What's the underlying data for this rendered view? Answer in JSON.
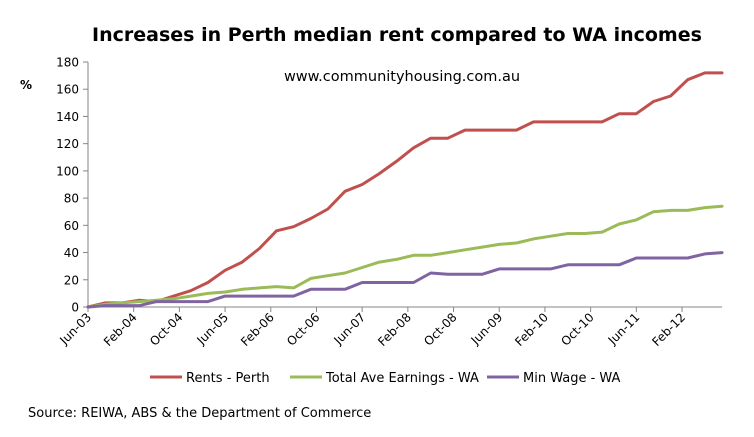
{
  "chart_data": {
    "type": "line",
    "title": "Increases in Perth median rent compared to WA incomes",
    "annotation": "www.communityhousing.com.au",
    "ylabel": "%",
    "source": "Source: REIWA, ABS & the Department of Commerce",
    "ylim": [
      0,
      180
    ],
    "yticks": [
      0,
      20,
      40,
      60,
      80,
      100,
      120,
      140,
      160,
      180
    ],
    "grid": false,
    "legend_position": "bottom",
    "x_tick_labels": [
      "Jun-03",
      "Feb-04",
      "Oct-04",
      "Jun-05",
      "Feb-06",
      "Oct-06",
      "Jun-07",
      "Feb-08",
      "Oct-08",
      "Jun-09",
      "Feb-10",
      "Oct-10",
      "Jun-11",
      "Feb-12"
    ],
    "x_start": "Jun-03",
    "x_end": "Sep-12",
    "series": [
      {
        "name": "Rents - Perth",
        "color": "#c0504d",
        "points": [
          [
            "Jun-03",
            0
          ],
          [
            "Sep-03",
            3
          ],
          [
            "Dec-03",
            3
          ],
          [
            "Mar-04",
            5
          ],
          [
            "Jun-04",
            4
          ],
          [
            "Sep-04",
            8
          ],
          [
            "Dec-04",
            12
          ],
          [
            "Mar-05",
            18
          ],
          [
            "Jun-05",
            27
          ],
          [
            "Sep-05",
            33
          ],
          [
            "Dec-05",
            43
          ],
          [
            "Mar-06",
            56
          ],
          [
            "Jun-06",
            59
          ],
          [
            "Sep-06",
            65
          ],
          [
            "Dec-06",
            72
          ],
          [
            "Mar-07",
            85
          ],
          [
            "Jun-07",
            90
          ],
          [
            "Sep-07",
            98
          ],
          [
            "Dec-07",
            107
          ],
          [
            "Mar-08",
            117
          ],
          [
            "Jun-08",
            124
          ],
          [
            "Sep-08",
            124
          ],
          [
            "Dec-08",
            130
          ],
          [
            "Mar-09",
            130
          ],
          [
            "Jun-09",
            130
          ],
          [
            "Sep-09",
            130
          ],
          [
            "Dec-09",
            136
          ],
          [
            "Mar-10",
            136
          ],
          [
            "Jun-10",
            136
          ],
          [
            "Sep-10",
            136
          ],
          [
            "Dec-10",
            136
          ],
          [
            "Mar-11",
            142
          ],
          [
            "Jun-11",
            142
          ],
          [
            "Sep-11",
            151
          ],
          [
            "Dec-11",
            155
          ],
          [
            "Mar-12",
            167
          ],
          [
            "Jun-12",
            172
          ],
          [
            "Sep-12",
            172
          ]
        ]
      },
      {
        "name": "Total Ave Earnings - WA",
        "color": "#9bbb59",
        "points": [
          [
            "Jun-03",
            0
          ],
          [
            "Sep-03",
            2
          ],
          [
            "Dec-03",
            3
          ],
          [
            "Mar-04",
            4
          ],
          [
            "Jun-04",
            5
          ],
          [
            "Sep-04",
            6
          ],
          [
            "Dec-04",
            8
          ],
          [
            "Mar-05",
            10
          ],
          [
            "Jun-05",
            11
          ],
          [
            "Sep-05",
            13
          ],
          [
            "Dec-05",
            14
          ],
          [
            "Mar-06",
            15
          ],
          [
            "Jun-06",
            14
          ],
          [
            "Sep-06",
            21
          ],
          [
            "Dec-06",
            23
          ],
          [
            "Mar-07",
            25
          ],
          [
            "Jun-07",
            29
          ],
          [
            "Sep-07",
            33
          ],
          [
            "Dec-07",
            35
          ],
          [
            "Mar-08",
            38
          ],
          [
            "Jun-08",
            38
          ],
          [
            "Sep-08",
            40
          ],
          [
            "Dec-08",
            42
          ],
          [
            "Mar-09",
            44
          ],
          [
            "Jun-09",
            46
          ],
          [
            "Sep-09",
            47
          ],
          [
            "Dec-09",
            50
          ],
          [
            "Mar-10",
            52
          ],
          [
            "Jun-10",
            54
          ],
          [
            "Sep-10",
            54
          ],
          [
            "Dec-10",
            55
          ],
          [
            "Mar-11",
            61
          ],
          [
            "Jun-11",
            64
          ],
          [
            "Sep-11",
            70
          ],
          [
            "Dec-11",
            71
          ],
          [
            "Mar-12",
            71
          ],
          [
            "Jun-12",
            73
          ],
          [
            "Sep-12",
            74
          ]
        ]
      },
      {
        "name": "Min Wage - WA",
        "color": "#8064a2",
        "points": [
          [
            "Jun-03",
            0
          ],
          [
            "Sep-03",
            1
          ],
          [
            "Dec-03",
            1
          ],
          [
            "Mar-04",
            1
          ],
          [
            "Jun-04",
            4
          ],
          [
            "Sep-04",
            4
          ],
          [
            "Dec-04",
            4
          ],
          [
            "Mar-05",
            4
          ],
          [
            "Jun-05",
            8
          ],
          [
            "Sep-05",
            8
          ],
          [
            "Dec-05",
            8
          ],
          [
            "Mar-06",
            8
          ],
          [
            "Jun-06",
            8
          ],
          [
            "Sep-06",
            13
          ],
          [
            "Dec-06",
            13
          ],
          [
            "Mar-07",
            13
          ],
          [
            "Jun-07",
            18
          ],
          [
            "Sep-07",
            18
          ],
          [
            "Dec-07",
            18
          ],
          [
            "Mar-08",
            18
          ],
          [
            "Jun-08",
            25
          ],
          [
            "Sep-08",
            24
          ],
          [
            "Dec-08",
            24
          ],
          [
            "Mar-09",
            24
          ],
          [
            "Jun-09",
            28
          ],
          [
            "Sep-09",
            28
          ],
          [
            "Dec-09",
            28
          ],
          [
            "Mar-10",
            28
          ],
          [
            "Jun-10",
            31
          ],
          [
            "Sep-10",
            31
          ],
          [
            "Dec-10",
            31
          ],
          [
            "Mar-11",
            31
          ],
          [
            "Jun-11",
            36
          ],
          [
            "Sep-11",
            36
          ],
          [
            "Dec-11",
            36
          ],
          [
            "Mar-12",
            36
          ],
          [
            "Jun-12",
            39
          ],
          [
            "Sep-12",
            40
          ]
        ]
      }
    ]
  }
}
